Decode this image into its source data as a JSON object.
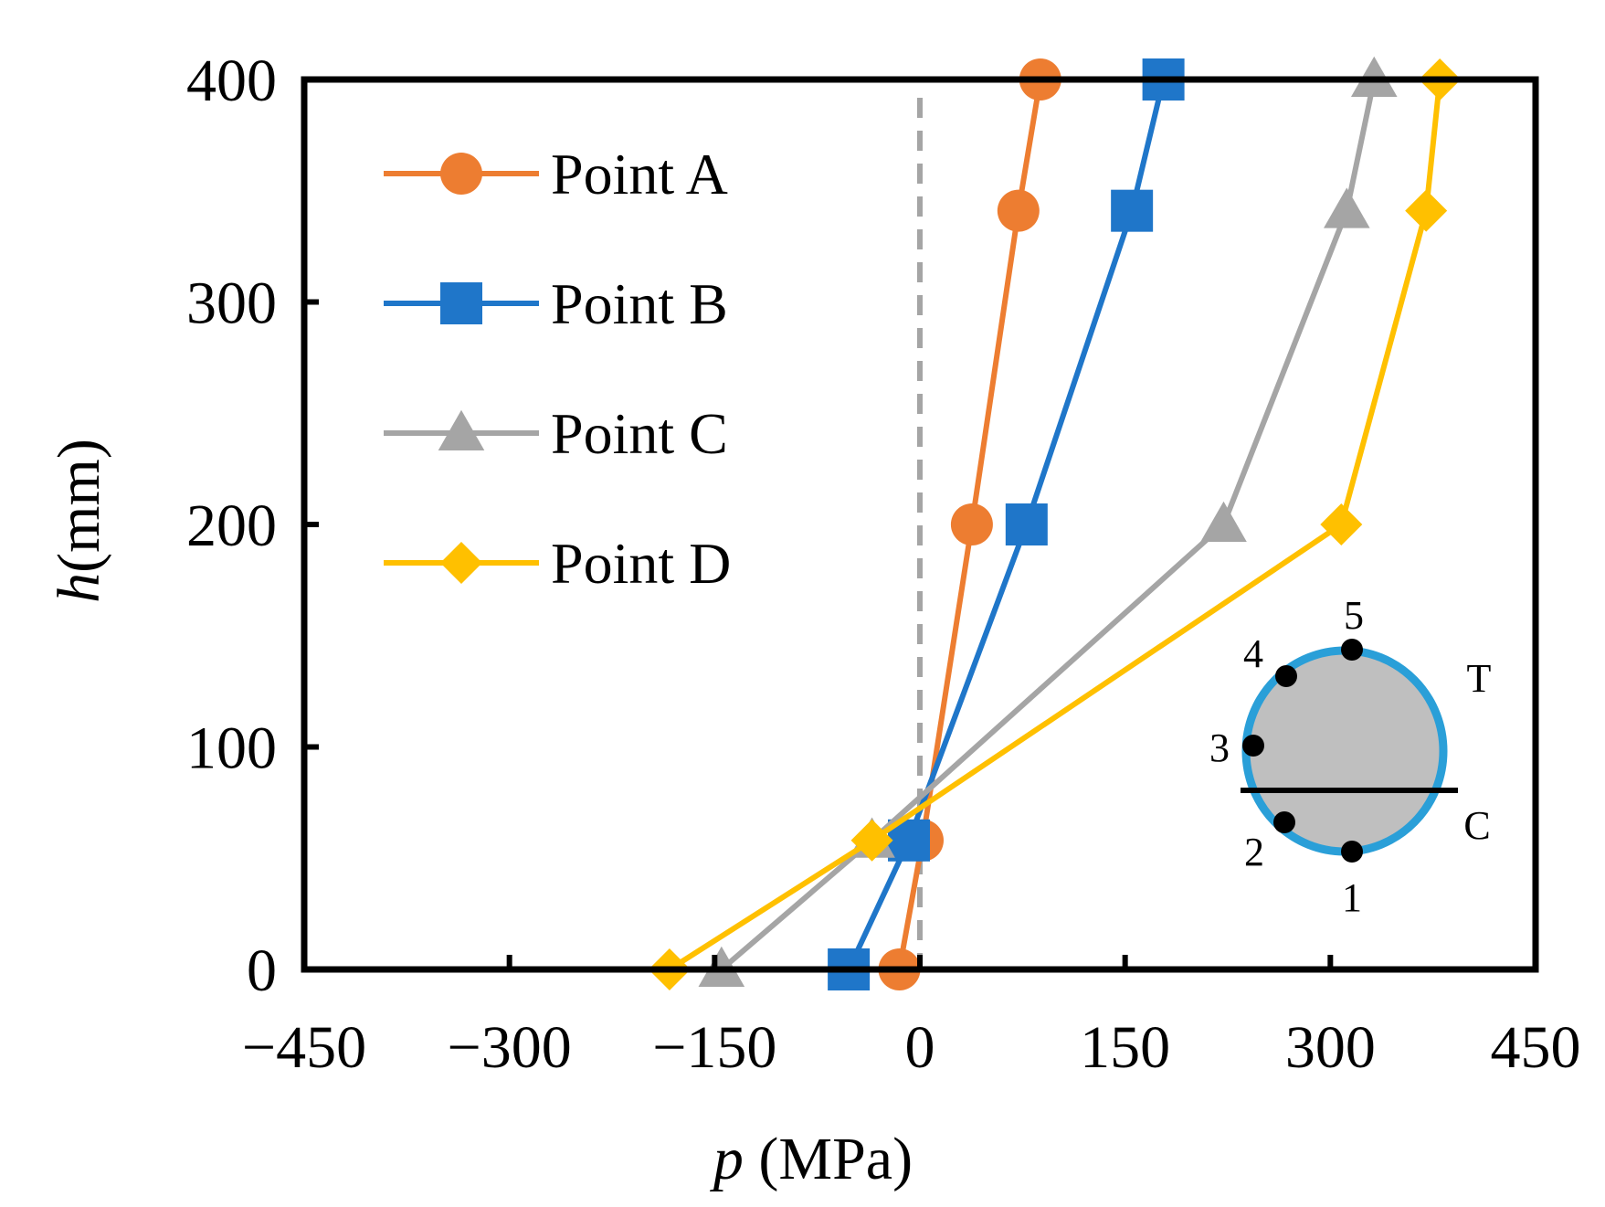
{
  "chart_data": {
    "type": "line",
    "title": "",
    "xlabel_var": "p",
    "xlabel_unit": " (MPa)",
    "ylabel_var": "h",
    "ylabel_unit": "(mm)",
    "xlim": [
      -450,
      450
    ],
    "ylim": [
      0,
      400
    ],
    "xticks": [
      -450,
      -300,
      -150,
      0,
      150,
      300,
      450
    ],
    "yticks": [
      0,
      100,
      200,
      300,
      400
    ],
    "xtick_labels": [
      "−450",
      "−300",
      "−150",
      "0",
      "150",
      "300",
      "450"
    ],
    "ytick_labels": [
      "0",
      "100",
      "200",
      "300",
      "400"
    ],
    "reference_line": {
      "x": 0,
      "style": "dashed",
      "color": "#A5A5A5"
    },
    "legend": "top-left",
    "series": [
      {
        "name": "Point A",
        "marker": "circle",
        "color": "#ED7D31",
        "points": [
          [
            -15,
            0
          ],
          [
            2,
            58
          ],
          [
            38,
            200
          ],
          [
            72,
            341
          ],
          [
            88,
            400
          ]
        ]
      },
      {
        "name": "Point B",
        "marker": "square",
        "color": "#1F76C9",
        "points": [
          [
            -52,
            0
          ],
          [
            -8,
            58
          ],
          [
            78,
            200
          ],
          [
            155,
            341
          ],
          [
            178,
            400
          ]
        ]
      },
      {
        "name": "Point C",
        "marker": "triangle",
        "color": "#A5A5A5",
        "points": [
          [
            -145,
            0
          ],
          [
            -35,
            58
          ],
          [
            222,
            200
          ],
          [
            312,
            341
          ],
          [
            332,
            400
          ]
        ]
      },
      {
        "name": "Point D",
        "marker": "diamond",
        "color": "#FFC000",
        "points": [
          [
            -183,
            0
          ],
          [
            -35,
            58
          ],
          [
            308,
            200
          ],
          [
            370,
            341
          ],
          [
            380,
            400
          ]
        ]
      }
    ],
    "inset": {
      "description": "circular cross-section",
      "points": [
        "1",
        "2",
        "3",
        "4",
        "5"
      ],
      "zone_labels": [
        "T",
        "C"
      ],
      "ring_color": "#2A9FD8",
      "fill_color": "#BFBFBF"
    }
  }
}
